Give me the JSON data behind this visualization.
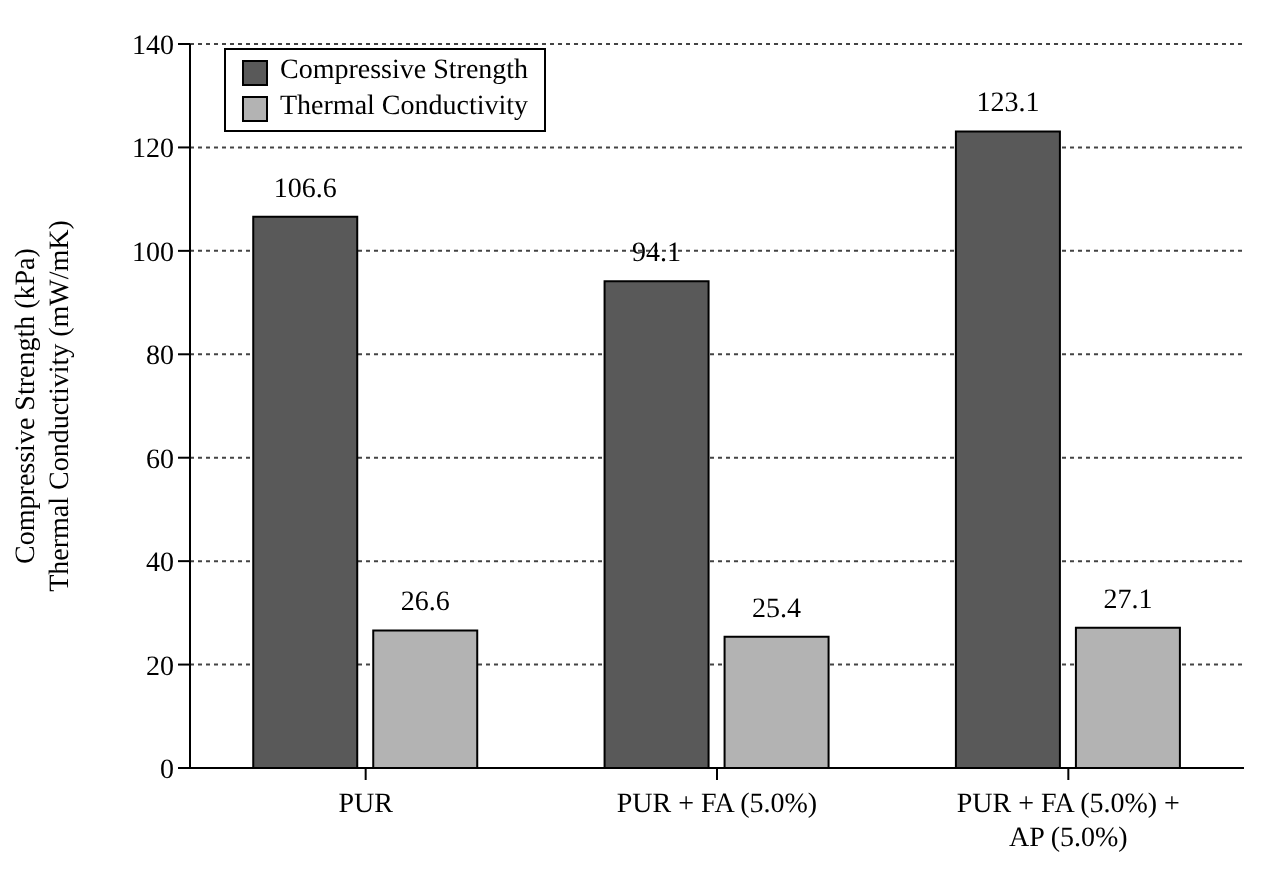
{
  "chart_data": {
    "type": "bar",
    "ylabel": "Compressive Strength (kPa)\nThermal Conductivity  (mW/mK)",
    "categories": [
      "PUR",
      "PUR + FA (5.0%)",
      "PUR + FA (5.0%) + AP (5.0%)"
    ],
    "series": [
      {
        "name": "Compressive Strength",
        "color": "#595959",
        "values": [
          106.6,
          94.1,
          123.1
        ]
      },
      {
        "name": "Thermal Conductivity",
        "color": "#b3b3b3",
        "values": [
          26.6,
          25.4,
          27.1
        ]
      }
    ],
    "ylim": [
      0,
      140
    ],
    "yticks": [
      0,
      20,
      40,
      60,
      80,
      100,
      120,
      140
    ],
    "grid": "y",
    "legend": "top left",
    "data_labels": true
  }
}
